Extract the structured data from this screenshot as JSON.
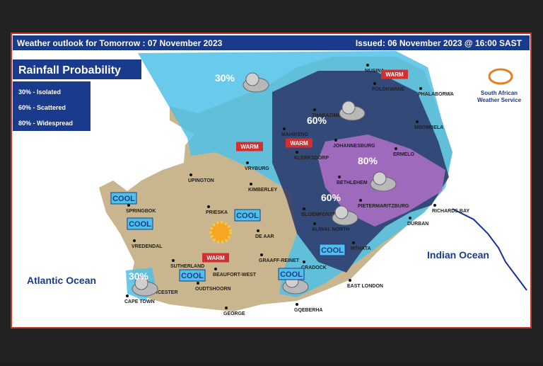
{
  "header": {
    "title": "Weather outlook for Tomorrow : 07 November 2023",
    "issued": "Issued: 06 November 2023 @ 16:00  SAST"
  },
  "legend": {
    "title": "Rainfall Probability",
    "items": [
      "30% - Isolated",
      "60% - Scattered",
      "80% - Widespread"
    ]
  },
  "logo": {
    "line1": "South African",
    "line2": "Weather Service"
  },
  "oceans": [
    "Atlantic Ocean",
    "Indian Ocean"
  ],
  "probability_labels": [
    "30%",
    "60%",
    "80%",
    "60%",
    "30%"
  ],
  "temperature_labels": [
    "WARM",
    "WARM",
    "WARM",
    "WARM",
    "COOL",
    "COOL",
    "COOL",
    "COOL",
    "COOL",
    "COOL"
  ],
  "cities": [
    "MUSINA",
    "POLOKWANE",
    "PHALABORWA",
    "THABAZIMBI",
    "MAHIKENG",
    "MBOMBELA",
    "KLERKSDORP",
    "JOHANNESBURG",
    "ERMELO",
    "VRYBURG",
    "UPINGTON",
    "KIMBERLEY",
    "BETHLEHEM",
    "RICHARDS BAY",
    "SPRINGBOK",
    "PRIESKA",
    "BLOEMFONTEIN",
    "PIETERMARITZBURG",
    "DE AAR",
    "ALIWAL NORTH",
    "DURBAN",
    "VREDENDAL",
    "GRAAFF-REINET",
    "MTHATA",
    "SUTHERLAND",
    "BEAUFORT-WEST",
    "CRADOCK",
    "WORCESTER",
    "OUDTSHOORN",
    "EAST LONDON",
    "CAPE TOWN",
    "GEORGE",
    "GQEBERHA"
  ]
}
